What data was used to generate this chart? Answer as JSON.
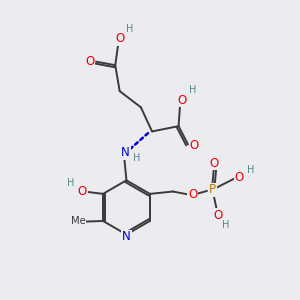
{
  "bg_color": "#ebebf0",
  "bond_color": "#3a3a3a",
  "bond_lw": 1.4,
  "atom_colors": {
    "O": "#ee0000",
    "N": "#0000cc",
    "P": "#bb7700",
    "H": "#558888",
    "C": "#3a3a3a"
  },
  "fs": 8.5,
  "fsh": 7.0
}
